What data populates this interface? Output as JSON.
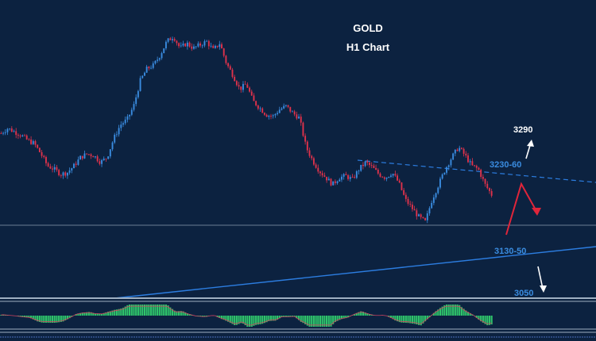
{
  "chart_data": {
    "type": "candlestick",
    "title": "GOLD",
    "subtitle": "H1 Chart",
    "annotations": [
      {
        "text": "3290",
        "kind": "target-up"
      },
      {
        "text": "3230-60",
        "kind": "resistance"
      },
      {
        "text": "3130-50",
        "kind": "support"
      },
      {
        "text": "3050",
        "kind": "target-down"
      }
    ],
    "price_path": [
      3238,
      3244,
      3240,
      3236,
      3230,
      3226,
      3214,
      3200,
      3196,
      3190,
      3192,
      3200,
      3210,
      3214,
      3212,
      3204,
      3210,
      3232,
      3248,
      3254,
      3270,
      3300,
      3314,
      3318,
      3330,
      3346,
      3352,
      3338,
      3344,
      3338,
      3342,
      3346,
      3336,
      3344,
      3320,
      3306,
      3290,
      3296,
      3276,
      3268,
      3260,
      3258,
      3266,
      3270,
      3262,
      3256,
      3222,
      3206,
      3194,
      3186,
      3178,
      3186,
      3188,
      3184,
      3196,
      3204,
      3198,
      3190,
      3186,
      3192,
      3180,
      3160,
      3150,
      3140,
      3134,
      3160,
      3178,
      3196,
      3210,
      3222,
      3212,
      3200,
      3196,
      3178,
      3166
    ],
    "colors": {
      "up": "#3a8ce0",
      "down": "#e0324b",
      "histogram": "#2fc46b",
      "trendline": "#2c7de0",
      "projection": "#e0253a",
      "background": "#0c2240"
    }
  }
}
